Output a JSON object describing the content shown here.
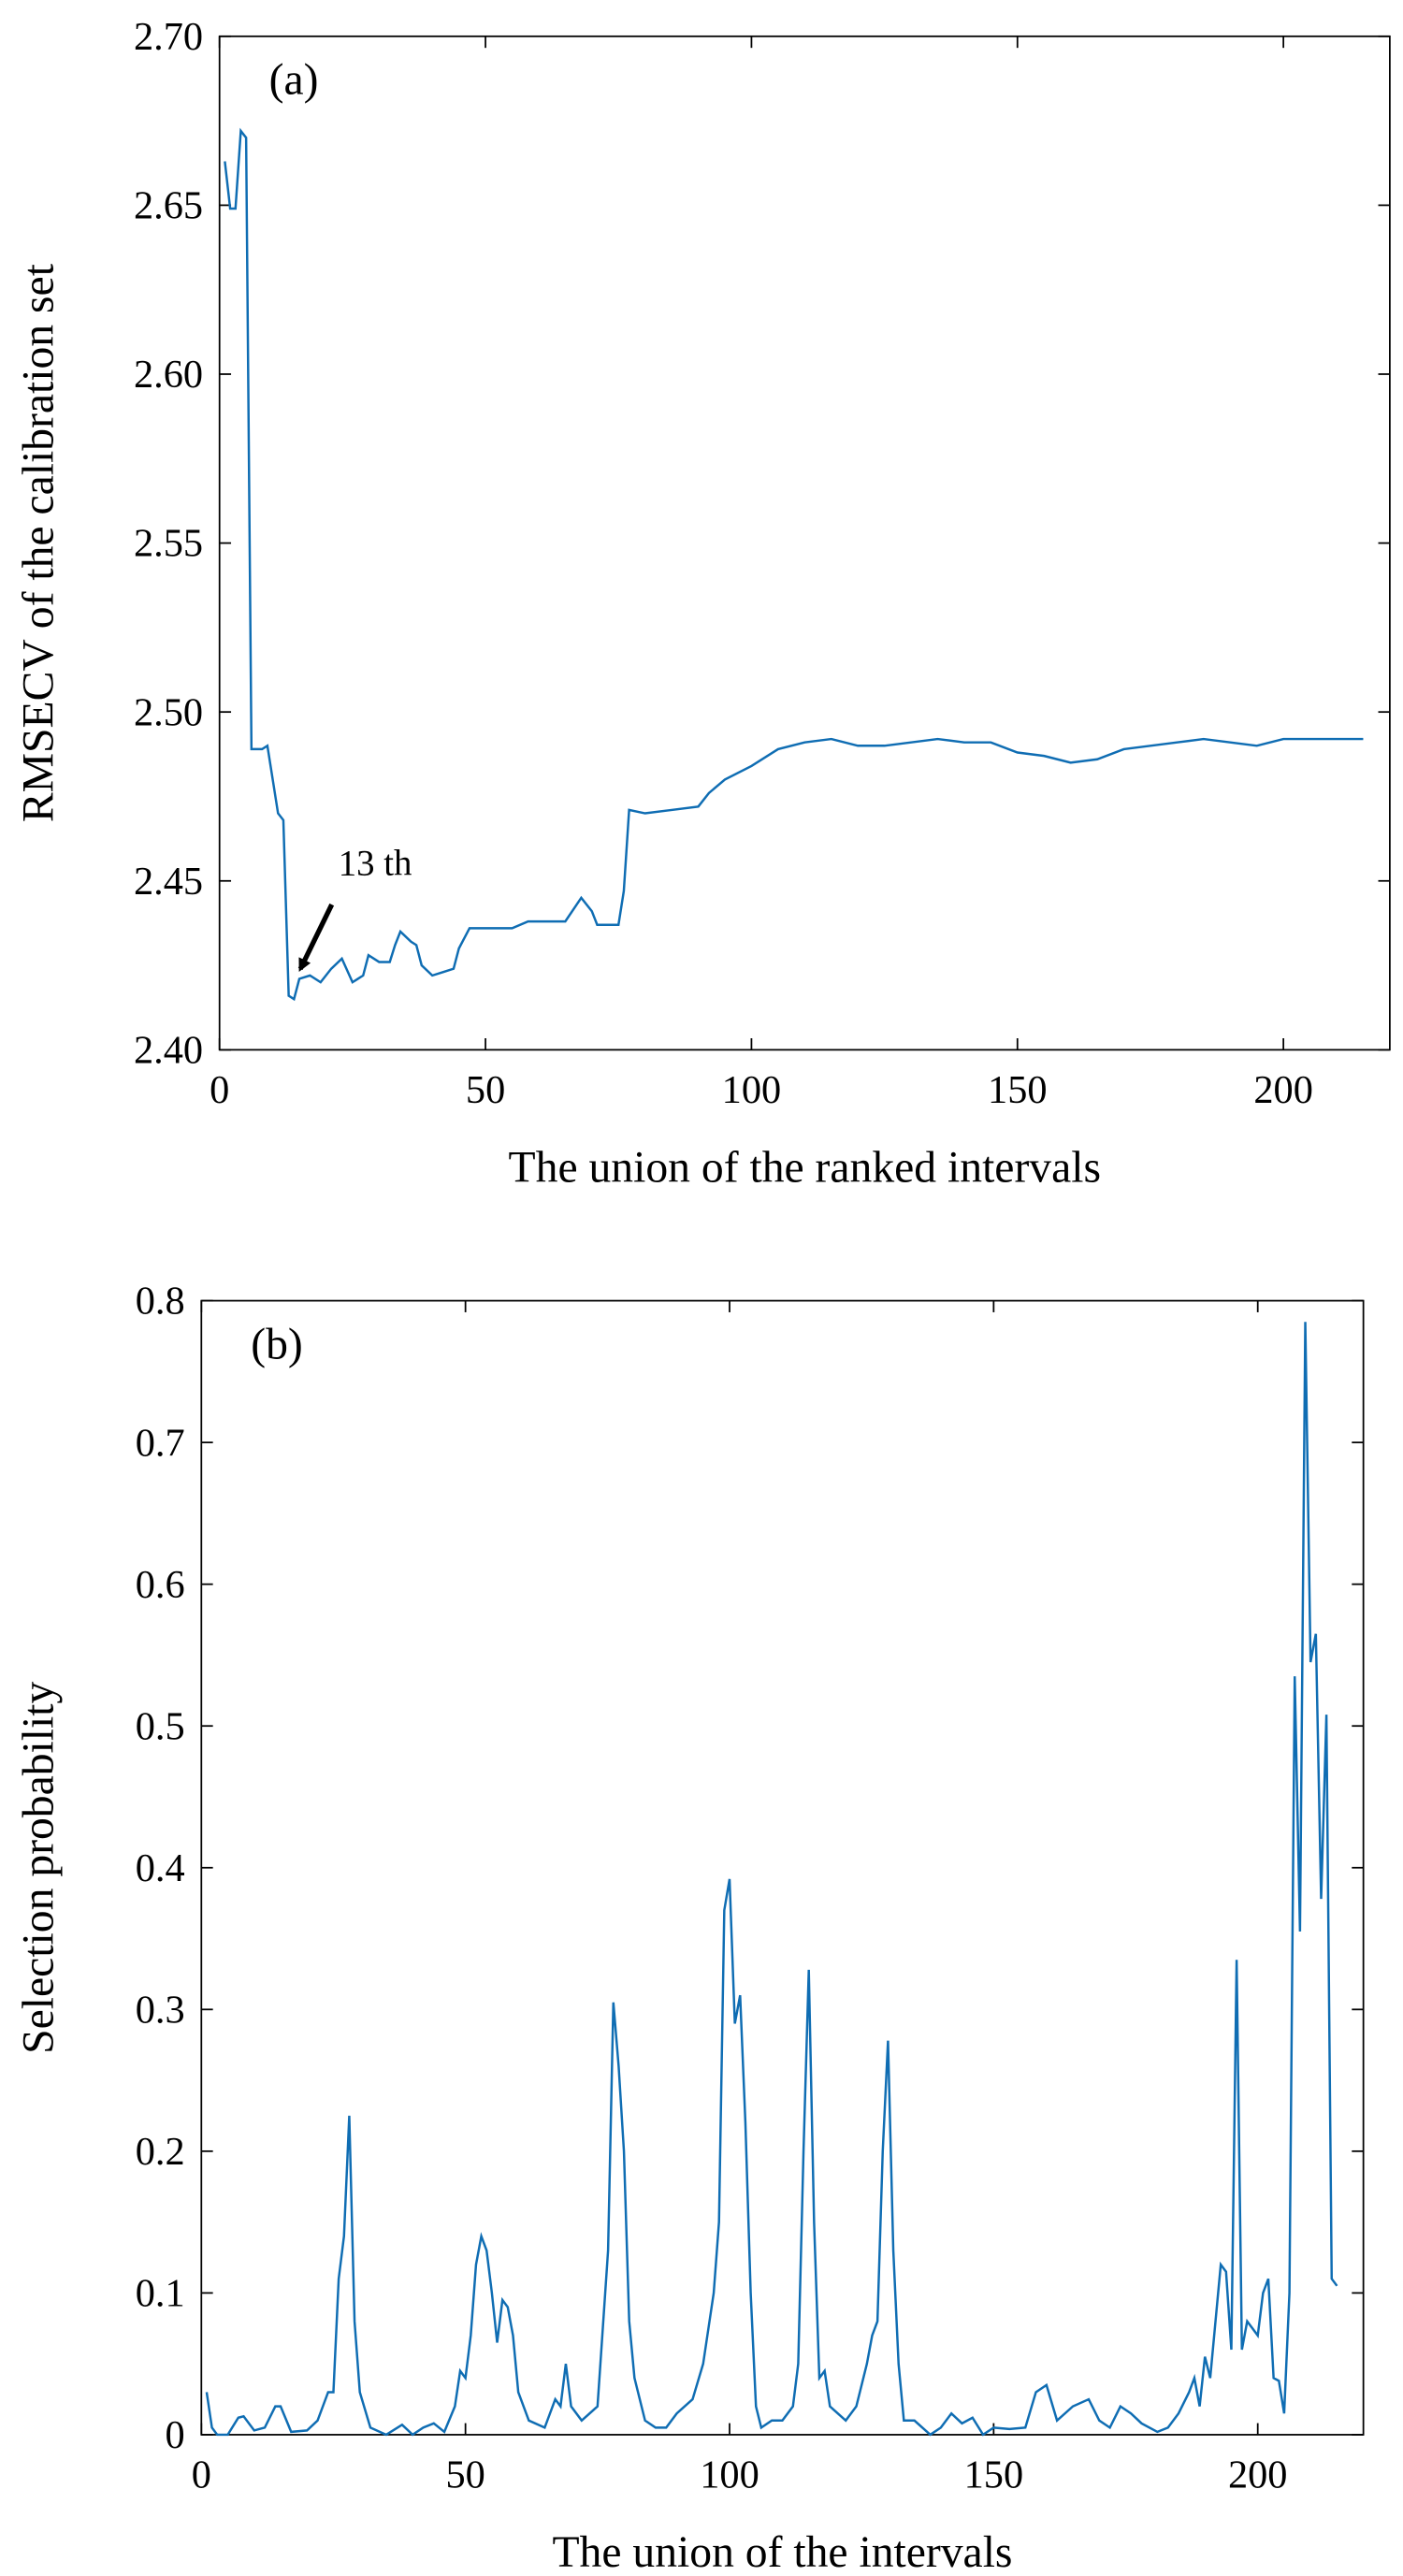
{
  "chart_data": [
    {
      "type": "line",
      "panel_label": "(a)",
      "annotation": "13 th",
      "xlabel": "The union of the ranked intervals",
      "ylabel": "RMSECV of the calibration set",
      "color": "#0f6db3",
      "xlim": [
        0,
        220
      ],
      "xticks": [
        0,
        50,
        100,
        150,
        200
      ],
      "ylim": [
        2.4,
        2.7
      ],
      "yticks": [
        {
          "value": 2.4,
          "label": "2.40"
        },
        {
          "value": 2.45,
          "label": "2.45"
        },
        {
          "value": 2.5,
          "label": "2.50"
        },
        {
          "value": 2.55,
          "label": "2.55"
        },
        {
          "value": 2.6,
          "label": "2.60"
        },
        {
          "value": 2.65,
          "label": "2.65"
        },
        {
          "value": 2.7,
          "label": "2.70"
        }
      ],
      "x": [
        1,
        2,
        3,
        4,
        5,
        6,
        8,
        9,
        10,
        11,
        12,
        13,
        14,
        15,
        17,
        19,
        21,
        23,
        25,
        27,
        28,
        30,
        32,
        33,
        34,
        36,
        37,
        38,
        40,
        42,
        44,
        45,
        47,
        50,
        55,
        58,
        65,
        68,
        70,
        71,
        75,
        76,
        77,
        80,
        85,
        90,
        92,
        95,
        100,
        105,
        110,
        115,
        120,
        125,
        130,
        135,
        140,
        145,
        150,
        155,
        160,
        165,
        170,
        175,
        180,
        185,
        190,
        195,
        200,
        215
      ],
      "values": [
        2.663,
        2.649,
        2.649,
        2.672,
        2.67,
        2.489,
        2.489,
        2.49,
        2.48,
        2.47,
        2.468,
        2.416,
        2.415,
        2.421,
        2.422,
        2.42,
        2.424,
        2.427,
        2.42,
        2.422,
        2.428,
        2.426,
        2.426,
        2.431,
        2.435,
        2.432,
        2.431,
        2.425,
        2.422,
        2.423,
        2.424,
        2.43,
        2.436,
        2.436,
        2.436,
        2.438,
        2.438,
        2.445,
        2.441,
        2.437,
        2.437,
        2.447,
        2.471,
        2.47,
        2.471,
        2.472,
        2.476,
        2.48,
        2.484,
        2.489,
        2.491,
        2.492,
        2.49,
        2.49,
        2.491,
        2.492,
        2.491,
        2.491,
        2.488,
        2.487,
        2.485,
        2.486,
        2.489,
        2.49,
        2.491,
        2.492,
        2.491,
        2.49,
        2.492,
        2.492
      ]
    },
    {
      "type": "line",
      "panel_label": "(b)",
      "xlabel": "The union of the intervals",
      "ylabel": "Selection probability",
      "color": "#0f6db3",
      "xlim": [
        0,
        220
      ],
      "xticks": [
        0,
        50,
        100,
        150,
        200
      ],
      "ylim": [
        0,
        0.8
      ],
      "yticks": [
        0,
        0.1,
        0.2,
        0.3,
        0.4,
        0.5,
        0.6,
        0.7,
        0.8
      ],
      "x": [
        1,
        2,
        3,
        5,
        7,
        8,
        10,
        12,
        14,
        15,
        17,
        20,
        22,
        24,
        25,
        26,
        27,
        28,
        29,
        30,
        32,
        35,
        38,
        40,
        42,
        44,
        46,
        48,
        49,
        50,
        51,
        52,
        53,
        54,
        55,
        56,
        57,
        58,
        59,
        60,
        62,
        65,
        67,
        68,
        69,
        70,
        72,
        75,
        77,
        78,
        79,
        80,
        81,
        82,
        84,
        86,
        88,
        90,
        93,
        95,
        97,
        98,
        99,
        100,
        101,
        102,
        103,
        104,
        105,
        106,
        108,
        110,
        112,
        113,
        114,
        115,
        116,
        117,
        118,
        119,
        122,
        124,
        126,
        127,
        128,
        129,
        130,
        131,
        132,
        133,
        135,
        138,
        140,
        142,
        144,
        146,
        148,
        150,
        153,
        156,
        158,
        160,
        162,
        165,
        168,
        170,
        172,
        174,
        176,
        178,
        181,
        183,
        185,
        187,
        188,
        189,
        190,
        191,
        192,
        193,
        194,
        195,
        196,
        197,
        198,
        199,
        200,
        201,
        202,
        203,
        204,
        205,
        206,
        207,
        208,
        209,
        210,
        211,
        212,
        213,
        214,
        215
      ],
      "values": [
        0.03,
        0.005,
        0,
        0,
        0.012,
        0.013,
        0.003,
        0.005,
        0.02,
        0.02,
        0.002,
        0.003,
        0.01,
        0.03,
        0.03,
        0.11,
        0.14,
        0.225,
        0.08,
        0.03,
        0.005,
        0,
        0.007,
        0,
        0.005,
        0.008,
        0.002,
        0.02,
        0.045,
        0.04,
        0.07,
        0.12,
        0.14,
        0.13,
        0.1,
        0.065,
        0.095,
        0.09,
        0.07,
        0.03,
        0.01,
        0.005,
        0.025,
        0.02,
        0.05,
        0.02,
        0.01,
        0.02,
        0.13,
        0.305,
        0.26,
        0.2,
        0.08,
        0.04,
        0.01,
        0.005,
        0.005,
        0.015,
        0.025,
        0.05,
        0.1,
        0.15,
        0.37,
        0.392,
        0.29,
        0.31,
        0.22,
        0.1,
        0.02,
        0.005,
        0.01,
        0.01,
        0.02,
        0.05,
        0.2,
        0.328,
        0.15,
        0.04,
        0.045,
        0.02,
        0.01,
        0.02,
        0.05,
        0.07,
        0.08,
        0.2,
        0.278,
        0.13,
        0.05,
        0.01,
        0.01,
        0,
        0.005,
        0.015,
        0.008,
        0.012,
        0,
        0.005,
        0.004,
        0.005,
        0.03,
        0.035,
        0.01,
        0.02,
        0.025,
        0.01,
        0.005,
        0.02,
        0.015,
        0.008,
        0.002,
        0.005,
        0.015,
        0.03,
        0.04,
        0.02,
        0.055,
        0.04,
        0.08,
        0.12,
        0.115,
        0.06,
        0.335,
        0.06,
        0.08,
        0.075,
        0.07,
        0.1,
        0.11,
        0.04,
        0.038,
        0.015,
        0.1,
        0.535,
        0.355,
        0.785,
        0.545,
        0.565,
        0.378,
        0.508,
        0.11,
        0.105
      ]
    }
  ]
}
